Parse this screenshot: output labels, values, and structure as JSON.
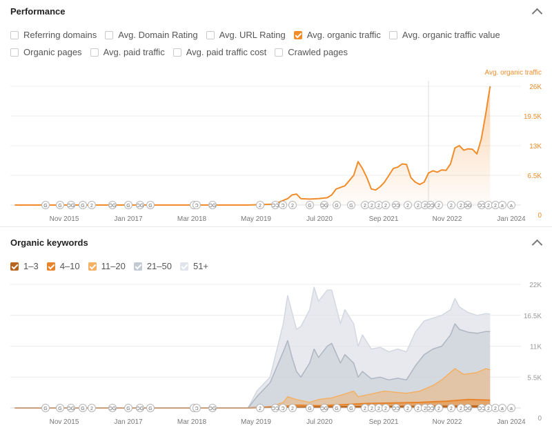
{
  "performance": {
    "title": "Performance",
    "checkbox_rows": [
      [
        {
          "label": "Referring domains",
          "checked": false,
          "color": "#c9c9c9"
        },
        {
          "label": "Avg. Domain Rating",
          "checked": false,
          "color": "#c9c9c9"
        },
        {
          "label": "Avg. URL Rating",
          "checked": false,
          "color": "#c9c9c9"
        },
        {
          "label": "Avg. organic traffic",
          "checked": true,
          "color": "#f08c2a"
        },
        {
          "label": "Avg. organic traffic value",
          "checked": false,
          "color": "#c9c9c9"
        }
      ],
      [
        {
          "label": "Organic pages",
          "checked": false,
          "color": "#c9c9c9"
        },
        {
          "label": "Avg. paid traffic",
          "checked": false,
          "color": "#c9c9c9"
        },
        {
          "label": "Avg. paid traffic cost",
          "checked": false,
          "color": "#c9c9c9"
        },
        {
          "label": "Crawled pages",
          "checked": false,
          "color": "#c9c9c9"
        }
      ]
    ]
  },
  "keywords": {
    "title": "Organic keywords",
    "legend": [
      {
        "label": "1–3",
        "checked": true,
        "color": "#b8641c"
      },
      {
        "label": "4–10",
        "checked": true,
        "color": "#e8832a"
      },
      {
        "label": "11–20",
        "checked": true,
        "color": "#f4b063"
      },
      {
        "label": "21–50",
        "checked": true,
        "color": "#c4cad4"
      },
      {
        "label": "51+",
        "checked": true,
        "color": "#e1e4ea"
      }
    ]
  },
  "x_axis_labels": [
    "Nov 2015",
    "Jan 2017",
    "Mar 2018",
    "May 2019",
    "Jul 2020",
    "Sep 2021",
    "Nov 2022",
    "Jan 2024"
  ],
  "markers": [
    "G",
    "G",
    "ƆG",
    "G",
    "2",
    "ƆG",
    "G",
    "ƆG",
    "G",
    "2",
    "Ɔ",
    "ƆG",
    "2",
    "ƆƆ",
    "Ɔ",
    "2",
    "G",
    "ƆG",
    "G",
    "G",
    "2",
    "2",
    "2",
    "2",
    "ƆƆ",
    "2",
    "2",
    "2",
    "ƆƆ",
    "2",
    "2",
    "2",
    "ƆG",
    "ƆƆ",
    "2",
    "2",
    "a",
    "a"
  ],
  "chart_data": [
    {
      "type": "area",
      "series": [
        {
          "name": "Avg. organic traffic",
          "color": "#f08c2a",
          "points": [
            [
              "2015-01",
              0
            ],
            [
              "2016-06",
              0
            ],
            [
              "2018-01",
              0
            ],
            [
              "2019-06",
              0
            ],
            [
              "2019-12",
              200
            ],
            [
              "2020-03",
              1400
            ],
            [
              "2020-04",
              2200
            ],
            [
              "2020-05",
              2400
            ],
            [
              "2020-06",
              1400
            ],
            [
              "2020-08",
              1300
            ],
            [
              "2020-10",
              1400
            ],
            [
              "2020-12",
              1600
            ],
            [
              "2021-01",
              2200
            ],
            [
              "2021-02",
              3500
            ],
            [
              "2021-04",
              4200
            ],
            [
              "2021-06",
              6500
            ],
            [
              "2021-07",
              9500
            ],
            [
              "2021-08",
              8000
            ],
            [
              "2021-09",
              6000
            ],
            [
              "2021-10",
              3500
            ],
            [
              "2021-11",
              3300
            ],
            [
              "2021-12",
              4000
            ],
            [
              "2022-01",
              5000
            ],
            [
              "2022-02",
              6500
            ],
            [
              "2022-03",
              8000
            ],
            [
              "2022-04",
              8300
            ],
            [
              "2022-05",
              9000
            ],
            [
              "2022-06",
              8900
            ],
            [
              "2022-07",
              6000
            ],
            [
              "2022-08",
              5000
            ],
            [
              "2022-09",
              4500
            ],
            [
              "2022-10",
              5000
            ],
            [
              "2022-11",
              7000
            ],
            [
              "2022-12",
              7500
            ],
            [
              "2023-01",
              7200
            ],
            [
              "2023-02",
              7700
            ],
            [
              "2023-03",
              7600
            ],
            [
              "2023-04",
              9000
            ],
            [
              "2023-05",
              12500
            ],
            [
              "2023-06",
              13000
            ],
            [
              "2023-07",
              12000
            ],
            [
              "2023-08",
              12300
            ],
            [
              "2023-09",
              12200
            ],
            [
              "2023-10",
              11200
            ],
            [
              "2023-11",
              14500
            ],
            [
              "2023-12",
              20000
            ],
            [
              "2024-01",
              26000
            ]
          ]
        }
      ],
      "xlim": [
        "2014-12",
        "2024-08"
      ],
      "ylim": [
        0,
        26000
      ],
      "y_ticks": [
        "0",
        "6.5K",
        "13K",
        "19.5K",
        "26K"
      ],
      "ylabel": "Avg. organic traffic",
      "legend": "top-right",
      "grid": true
    },
    {
      "type": "area",
      "stacked": true,
      "series": [
        {
          "name": "51+",
          "color": "#e1e4ea",
          "points": [
            [
              "2015-01",
              0
            ],
            [
              "2019-06",
              0
            ],
            [
              "2019-08",
              3000
            ],
            [
              "2019-11",
              5500
            ],
            [
              "2020-02",
              15000
            ],
            [
              "2020-03",
              20000
            ],
            [
              "2020-04",
              17000
            ],
            [
              "2020-05",
              14000
            ],
            [
              "2020-06",
              14500
            ],
            [
              "2020-08",
              17500
            ],
            [
              "2020-09",
              21500
            ],
            [
              "2020-10",
              19000
            ],
            [
              "2020-12",
              21000
            ],
            [
              "2021-01",
              21000
            ],
            [
              "2021-03",
              15000
            ],
            [
              "2021-04",
              17500
            ],
            [
              "2021-06",
              15000
            ],
            [
              "2021-07",
              11000
            ],
            [
              "2021-08",
              13000
            ],
            [
              "2021-10",
              10500
            ],
            [
              "2021-12",
              10800
            ],
            [
              "2022-02",
              10000
            ],
            [
              "2022-04",
              10500
            ],
            [
              "2022-06",
              10000
            ],
            [
              "2022-08",
              13500
            ],
            [
              "2022-10",
              15500
            ],
            [
              "2022-12",
              16000
            ],
            [
              "2023-02",
              16500
            ],
            [
              "2023-04",
              17500
            ],
            [
              "2023-05",
              19500
            ],
            [
              "2023-06",
              18000
            ],
            [
              "2023-08",
              17000
            ],
            [
              "2023-10",
              16500
            ],
            [
              "2023-12",
              16800
            ],
            [
              "2024-01",
              16700
            ]
          ]
        },
        {
          "name": "21–50",
          "color": "#c4cad4",
          "points": [
            [
              "2015-01",
              0
            ],
            [
              "2019-06",
              0
            ],
            [
              "2019-08",
              2000
            ],
            [
              "2019-11",
              4500
            ],
            [
              "2020-02",
              10000
            ],
            [
              "2020-03",
              12000
            ],
            [
              "2020-04",
              9000
            ],
            [
              "2020-05",
              6500
            ],
            [
              "2020-06",
              5500
            ],
            [
              "2020-08",
              8000
            ],
            [
              "2020-09",
              10500
            ],
            [
              "2020-10",
              9000
            ],
            [
              "2020-12",
              11000
            ],
            [
              "2021-01",
              11500
            ],
            [
              "2021-03",
              8000
            ],
            [
              "2021-04",
              9500
            ],
            [
              "2021-06",
              8000
            ],
            [
              "2021-07",
              5500
            ],
            [
              "2021-08",
              6500
            ],
            [
              "2021-10",
              5200
            ],
            [
              "2021-12",
              5500
            ],
            [
              "2022-02",
              5000
            ],
            [
              "2022-04",
              5300
            ],
            [
              "2022-06",
              5000
            ],
            [
              "2022-08",
              7500
            ],
            [
              "2022-10",
              9500
            ],
            [
              "2022-12",
              10500
            ],
            [
              "2023-02",
              11000
            ],
            [
              "2023-04",
              13000
            ],
            [
              "2023-05",
              15000
            ],
            [
              "2023-06",
              14000
            ],
            [
              "2023-08",
              13500
            ],
            [
              "2023-10",
              13300
            ],
            [
              "2023-12",
              13600
            ],
            [
              "2024-01",
              13600
            ]
          ]
        },
        {
          "name": "11–20",
          "color": "#f4b063",
          "points": [
            [
              "2015-01",
              0
            ],
            [
              "2019-06",
              0
            ],
            [
              "2019-11",
              200
            ],
            [
              "2020-02",
              1000
            ],
            [
              "2020-03",
              2000
            ],
            [
              "2020-05",
              1500
            ],
            [
              "2020-08",
              1000
            ],
            [
              "2020-10",
              1500
            ],
            [
              "2021-01",
              1800
            ],
            [
              "2021-04",
              2500
            ],
            [
              "2021-06",
              3000
            ],
            [
              "2021-07",
              2000
            ],
            [
              "2021-10",
              2500
            ],
            [
              "2022-01",
              3000
            ],
            [
              "2022-06",
              2600
            ],
            [
              "2022-09",
              3000
            ],
            [
              "2022-12",
              4000
            ],
            [
              "2023-02",
              5000
            ],
            [
              "2023-05",
              7000
            ],
            [
              "2023-07",
              6000
            ],
            [
              "2023-10",
              6300
            ],
            [
              "2023-12",
              7000
            ],
            [
              "2024-01",
              6800
            ]
          ]
        },
        {
          "name": "4–10",
          "color": "#e8832a",
          "points": [
            [
              "2015-01",
              0
            ],
            [
              "2019-06",
              0
            ],
            [
              "2020-02",
              300
            ],
            [
              "2020-05",
              500
            ],
            [
              "2020-10",
              400
            ],
            [
              "2021-04",
              600
            ],
            [
              "2021-09",
              800
            ],
            [
              "2022-03",
              900
            ],
            [
              "2022-09",
              1000
            ],
            [
              "2023-03",
              1200
            ],
            [
              "2023-08",
              1500
            ],
            [
              "2024-01",
              1400
            ]
          ]
        },
        {
          "name": "1–3",
          "color": "#b8641c",
          "points": [
            [
              "2015-01",
              0
            ],
            [
              "2019-06",
              0
            ],
            [
              "2020-06",
              150
            ],
            [
              "2021-06",
              250
            ],
            [
              "2022-06",
              300
            ],
            [
              "2023-06",
              350
            ],
            [
              "2024-01",
              350
            ]
          ]
        }
      ],
      "xlim": [
        "2014-12",
        "2024-08"
      ],
      "ylim": [
        0,
        22000
      ],
      "y_ticks": [
        "0",
        "5.5K",
        "11K",
        "16.5K",
        "22K"
      ],
      "grid": true
    }
  ]
}
